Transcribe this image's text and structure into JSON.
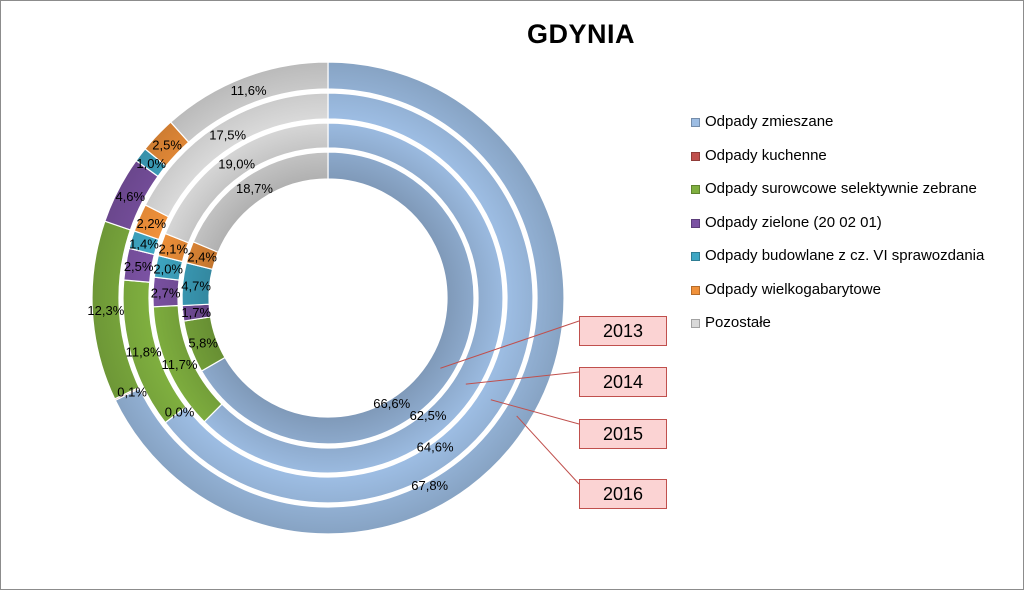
{
  "chart_data": {
    "type": "doughnut",
    "title": "GDYNIA",
    "categories": [
      "Odpady zmieszane",
      "Odpady kuchenne",
      "Odpady surowcowe selektywnie zebrane",
      "Odpady zielone (20 02 01)",
      "Odpady budowlane z cz. VI sprawozdania",
      "Odpady wielkogabarytowe",
      "Pozostałe"
    ],
    "colors": [
      "#9dbde3",
      "#c0504d",
      "#7faf3f",
      "#7b52a3",
      "#3fa7c4",
      "#f0913a",
      "#d9d9d9"
    ],
    "series": [
      {
        "name": "2013",
        "values": [
          66.6,
          0,
          5.8,
          1.7,
          4.7,
          2.4,
          18.7
        ],
        "labels": [
          "66,6%",
          "",
          "5,8%",
          "1,7%",
          "4,7%",
          "2,4%",
          "18,7%"
        ]
      },
      {
        "name": "2014",
        "values": [
          62.5,
          0,
          11.7,
          2.7,
          2.0,
          2.1,
          19.0
        ],
        "labels": [
          "62,5%",
          "",
          "11,7%",
          "2,7%",
          "2,0%",
          "2,1%",
          "19,0%"
        ]
      },
      {
        "name": "2015",
        "values": [
          64.6,
          0.0,
          11.8,
          2.5,
          1.4,
          2.2,
          17.5
        ],
        "labels": [
          "64,6%",
          "0,0%",
          "11,8%",
          "2,5%",
          "1,4%",
          "2,2%",
          "17,5%"
        ]
      },
      {
        "name": "2016",
        "values": [
          67.8,
          0.1,
          12.3,
          4.6,
          1.0,
          2.5,
          11.6
        ],
        "labels": [
          "67,8%",
          "0,1%",
          "12,3%",
          "4,6%",
          "1,0%",
          "2,5%",
          "11,6%"
        ]
      }
    ],
    "legend_position": "right"
  }
}
